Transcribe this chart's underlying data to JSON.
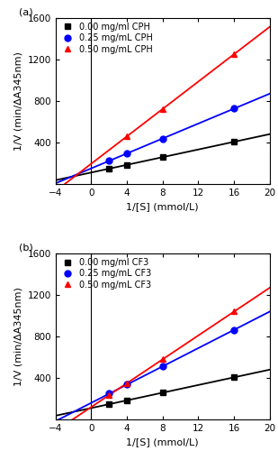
{
  "panels": [
    {
      "label": "(a)",
      "series": [
        {
          "name": "0.00 mg/ml CPH",
          "color": "#000000",
          "marker": "s",
          "slope": 18.5,
          "intercept": 110,
          "points_x": [
            2,
            4,
            8,
            16
          ],
          "points_y": [
            147,
            184,
            258,
            406
          ]
        },
        {
          "name": "0.25 mg/mL CPH",
          "color": "#0000ff",
          "marker": "o",
          "slope": 36.0,
          "intercept": 150,
          "points_x": [
            2,
            4,
            8,
            16
          ],
          "points_y": [
            222,
            294,
            438,
            726
          ]
        },
        {
          "name": "0.50 mg/mL CPH",
          "color": "#ff0000",
          "marker": "^",
          "slope": 66.0,
          "intercept": 195,
          "points_x": [
            4,
            8,
            16
          ],
          "points_y": [
            459,
            723,
            1251
          ]
        }
      ],
      "ylabel": "1/V (min/ΔA345nm)",
      "xlabel": "1/[S] (mmol/L)",
      "ylim": [
        0,
        1600
      ],
      "xlim": [
        -4,
        20
      ],
      "yticks": [
        400,
        800,
        1200,
        1600
      ],
      "ytick_top": 1600,
      "xticks": [
        -4,
        0,
        4,
        8,
        12,
        16,
        20
      ]
    },
    {
      "label": "(b)",
      "series": [
        {
          "name": "0.00 mg/ml CF3",
          "color": "#000000",
          "marker": "s",
          "slope": 18.5,
          "intercept": 110,
          "points_x": [
            2,
            4,
            8,
            16
          ],
          "points_y": [
            147,
            184,
            258,
            406
          ]
        },
        {
          "name": "0.25 mg/mL CF3",
          "color": "#0000ff",
          "marker": "o",
          "slope": 44.0,
          "intercept": 160,
          "points_x": [
            2,
            4,
            8,
            16
          ],
          "points_y": [
            248,
            336,
            512,
            864
          ]
        },
        {
          "name": "0.50 mg/mL CF3",
          "color": "#ff0000",
          "marker": "^",
          "slope": 57.5,
          "intercept": 120,
          "points_x": [
            2,
            4,
            8,
            16
          ],
          "points_y": [
            235,
            350,
            580,
            1040
          ]
        }
      ],
      "ylabel": "1/V (min/ΔA345nm)",
      "xlabel": "1/[S] (mmol/L)",
      "ylim": [
        0,
        1600
      ],
      "xlim": [
        -4,
        20
      ],
      "yticks": [
        400,
        800,
        1200,
        1600
      ],
      "ytick_top": 1600,
      "xticks": [
        -4,
        0,
        4,
        8,
        12,
        16,
        20
      ]
    }
  ],
  "figure_bg": "#ffffff",
  "legend_fontsize": 7.0,
  "tick_fontsize": 7.5,
  "label_fontsize": 8.0,
  "linewidth": 1.3,
  "markersize": 5.0
}
